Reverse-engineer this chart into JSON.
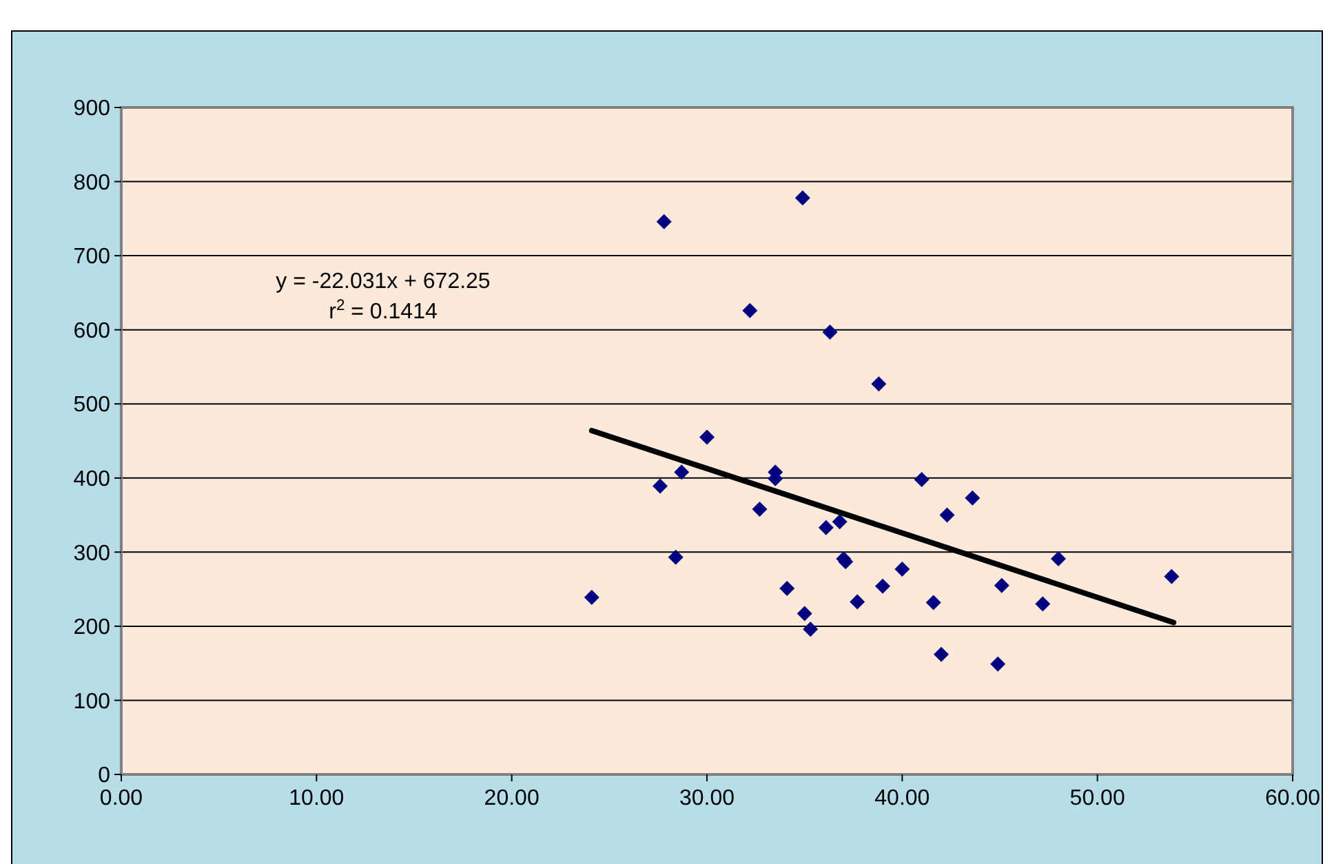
{
  "chart_data": {
    "type": "scatter",
    "xlim": [
      0,
      60
    ],
    "ylim": [
      0,
      900
    ],
    "xticks": [
      {
        "value": 0,
        "label": "0.00"
      },
      {
        "value": 10,
        "label": "10.00"
      },
      {
        "value": 20,
        "label": "20.00"
      },
      {
        "value": 30,
        "label": "30.00"
      },
      {
        "value": 40,
        "label": "40.00"
      },
      {
        "value": 50,
        "label": "50.00"
      },
      {
        "value": 60,
        "label": "60.00"
      }
    ],
    "yticks": [
      0,
      100,
      200,
      300,
      400,
      500,
      600,
      700,
      800,
      900
    ],
    "grid": "y",
    "marker": "diamond",
    "annotations": [
      "y = -22.031x + 672.25",
      "r$^{2}$ = 0.1414"
    ],
    "series": [
      {
        "color": "#000080",
        "x": [
          24.1,
          27.8,
          27.6,
          28.4,
          28.7,
          30.0,
          32.2,
          32.7,
          33.5,
          33.5,
          34.1,
          34.9,
          35.0,
          35.3,
          36.1,
          36.3,
          36.8,
          37.0,
          37.1,
          37.7,
          38.8,
          39.0,
          40.0,
          41.0,
          41.6,
          42.0,
          42.3,
          43.6,
          44.9,
          45.1,
          47.2,
          48.0,
          53.8
        ],
        "values": [
          239,
          746,
          389,
          293,
          408,
          455,
          626,
          358,
          408,
          399,
          251,
          778,
          217,
          196,
          333,
          597,
          341,
          291,
          287,
          233,
          527,
          254,
          277,
          398,
          232,
          162,
          350,
          373,
          149,
          255,
          230,
          291,
          267
        ]
      },
      {
        "type": "line",
        "color": "#000000",
        "x": [
          24.1,
          53.9
        ],
        "values": [
          464,
          205
        ],
        "marker": "none"
      }
    ]
  }
}
